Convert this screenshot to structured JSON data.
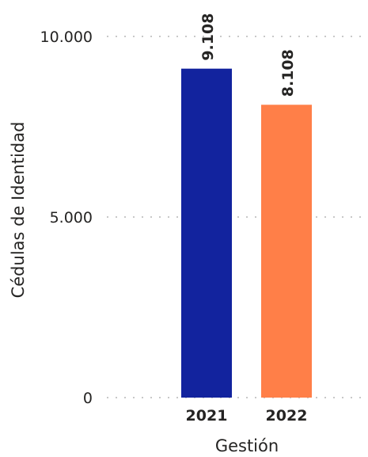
{
  "chart_data": {
    "type": "bar",
    "categories": [
      "2021",
      "2022"
    ],
    "values": [
      9108,
      8108
    ],
    "value_labels": [
      "9.108",
      "8.108"
    ],
    "colors": [
      "#12239E",
      "#FF7F48"
    ],
    "xlabel": "Gestión",
    "ylabel": "Cédulas de Identidad",
    "ylim": [
      0,
      10000
    ],
    "yticks": [
      0,
      5000,
      10000
    ],
    "ytick_labels": [
      "0",
      "5.000",
      "10.000"
    ],
    "grid": true,
    "legend": "none"
  }
}
